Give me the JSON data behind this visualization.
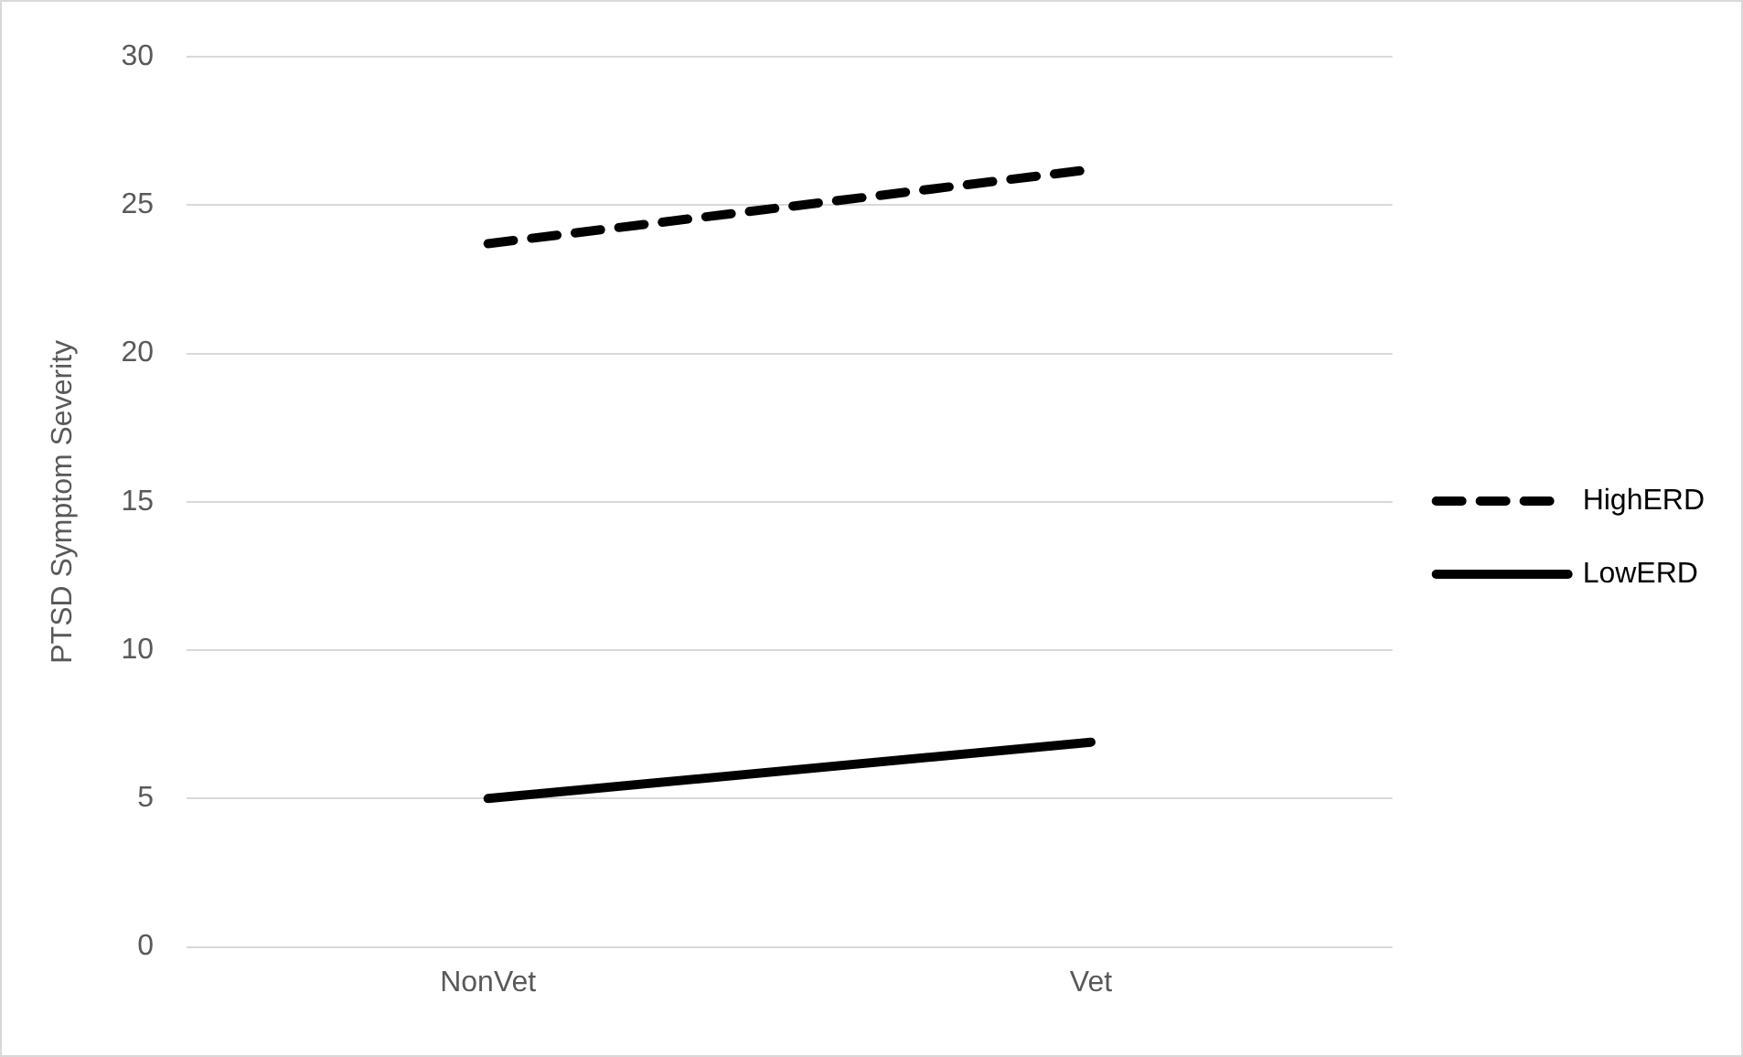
{
  "chart_data": {
    "type": "line",
    "ylabel": "PTSD Symptom Severity",
    "categories": [
      "NonVet",
      "Vet"
    ],
    "series": [
      {
        "name": "HighERD",
        "color": "#000000",
        "line_style": "dashed",
        "values": [
          23.7,
          26.2
        ]
      },
      {
        "name": "LowERD",
        "color": "#000000",
        "line_style": "solid",
        "values": [
          5.0,
          6.9
        ]
      }
    ],
    "ylim": [
      0,
      30
    ],
    "yticks": [
      0,
      5,
      10,
      15,
      20,
      25,
      30
    ],
    "grid": "y",
    "legend": "right",
    "marker": "none"
  }
}
